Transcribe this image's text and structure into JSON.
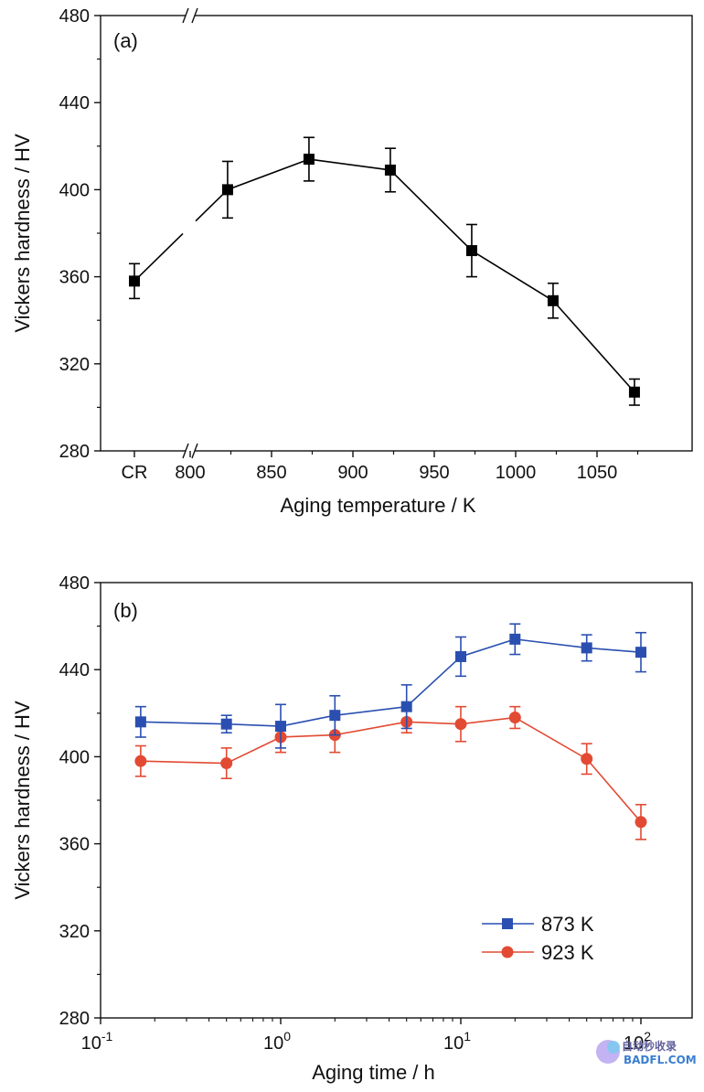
{
  "chart_data": [
    {
      "type": "line",
      "panel_label": "(a)",
      "xlabel": "Aging temperature / K",
      "ylabel": "Vickers hardness / HV",
      "ylim": [
        280,
        480
      ],
      "yticks": [
        "280",
        "320",
        "360",
        "400",
        "440",
        "480"
      ],
      "xlim": [
        775,
        1100
      ],
      "x_tick_labels": [
        "CR",
        "800",
        "850",
        "900",
        "950",
        "1000",
        "1050"
      ],
      "x_axis_break": true,
      "grid": false,
      "series": [
        {
          "color": "#000000",
          "marker": "square",
          "cr_point": {
            "x_label": "CR",
            "y": 358,
            "err": 8
          },
          "x": [
            823,
            873,
            923,
            973,
            1023,
            1073
          ],
          "y": [
            400,
            414,
            409,
            372,
            349,
            307
          ],
          "err": [
            13,
            10,
            10,
            12,
            8,
            6
          ]
        }
      ]
    },
    {
      "type": "line",
      "panel_label": "(b)",
      "xlabel": "Aging time / h",
      "ylabel": "Vickers hardness / HV",
      "ylim": [
        280,
        480
      ],
      "yticks": [
        "280",
        "320",
        "360",
        "400",
        "440",
        "480"
      ],
      "xscale": "log",
      "xlim": [
        0.1,
        300
      ],
      "x_tick_labels": [
        {
          "base": "10",
          "exp": "-1"
        },
        {
          "base": "10",
          "exp": "0"
        },
        {
          "base": "10",
          "exp": "1"
        },
        {
          "base": "10",
          "exp": "2"
        }
      ],
      "grid": false,
      "legend_position": "bottom-right",
      "series": [
        {
          "name": "873 K",
          "color": "#2a4fb0",
          "marker": "square",
          "x": [
            0.167,
            0.5,
            1,
            2,
            5,
            10,
            20,
            50,
            100
          ],
          "y": [
            416,
            415,
            414,
            419,
            423,
            446,
            454,
            450,
            448
          ],
          "err": [
            7,
            4,
            10,
            9,
            10,
            9,
            7,
            6,
            9
          ]
        },
        {
          "name": "923 K",
          "color": "#e24a33",
          "marker": "circle",
          "x": [
            0.167,
            0.5,
            1,
            2,
            5,
            10,
            20,
            50,
            100
          ],
          "y": [
            398,
            397,
            409,
            410,
            416,
            415,
            418,
            399,
            370
          ],
          "err": [
            7,
            7,
            7,
            8,
            5,
            8,
            5,
            7,
            8
          ]
        }
      ]
    }
  ],
  "watermark": {
    "line1": "自动秒收录",
    "line2": "BADFL.COM"
  }
}
